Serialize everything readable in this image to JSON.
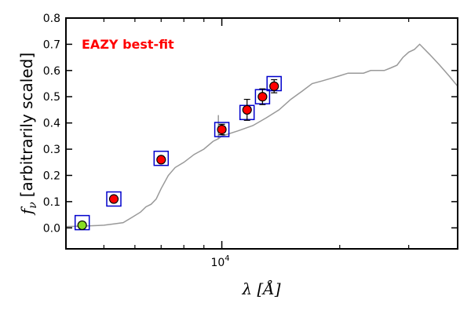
{
  "chart_data": {
    "type": "scatter",
    "title": "",
    "annotation": "EAZY best-fit",
    "annotation_color": "#ff0000",
    "ylabel_symbol": "f",
    "ylabel_subscript": "ν",
    "ylabel_text": "[arbitrarily scaled]",
    "xlabel": "λ [Å]",
    "x_scale": "log",
    "xlim": [
      4000,
      40000
    ],
    "ylim": [
      -0.08,
      0.8
    ],
    "y_ticks": [
      "0.0",
      "0.1",
      "0.2",
      "0.3",
      "0.4",
      "0.5",
      "0.6",
      "0.7",
      "0.8"
    ],
    "y_tick_values": [
      0.0,
      0.1,
      0.2,
      0.3,
      0.4,
      0.5,
      0.6,
      0.7,
      0.8
    ],
    "x_tick_label_base": "10",
    "x_tick_label_exp": "4",
    "x_tick_major": 10000,
    "x_tick_minor": [
      5000,
      6000,
      7000,
      8000,
      9000,
      20000,
      30000,
      40000
    ],
    "colors": {
      "model": "#999999",
      "observed": "#ff0000",
      "upper": "#88dd22",
      "box": "#0000cc",
      "axis": "#000000"
    },
    "model_sed": {
      "x": [
        4000,
        4500,
        5000,
        5300,
        5600,
        5900,
        6200,
        6400,
        6600,
        6800,
        7000,
        7300,
        7600,
        8000,
        8500,
        9000,
        9500,
        9800,
        10000,
        11000,
        12000,
        13000,
        14000,
        15000,
        16000,
        17000,
        18000,
        19000,
        20000,
        21000,
        22000,
        23000,
        24000,
        25000,
        26000,
        27000,
        28000,
        29000,
        30000,
        31000,
        32000,
        34000,
        36000,
        38000,
        40000
      ],
      "y": [
        0.005,
        0.007,
        0.01,
        0.015,
        0.02,
        0.04,
        0.06,
        0.08,
        0.09,
        0.11,
        0.15,
        0.2,
        0.23,
        0.25,
        0.28,
        0.3,
        0.33,
        0.34,
        0.35,
        0.37,
        0.39,
        0.42,
        0.45,
        0.49,
        0.52,
        0.55,
        0.56,
        0.57,
        0.58,
        0.59,
        0.59,
        0.59,
        0.6,
        0.6,
        0.6,
        0.61,
        0.62,
        0.65,
        0.67,
        0.68,
        0.7,
        0.66,
        0.62,
        0.58,
        0.54
      ]
    },
    "series": [
      {
        "name": "observed",
        "x": [
          5300,
          7000,
          10000,
          11600,
          12700,
          13600
        ],
        "y": [
          0.11,
          0.26,
          0.375,
          0.45,
          0.5,
          0.54
        ],
        "yerr": [
          0.012,
          0.012,
          0.02,
          0.04,
          0.03,
          0.025
        ],
        "model_y": [
          0.11,
          0.265,
          0.375,
          0.44,
          0.5,
          0.55
        ]
      },
      {
        "name": "u-band",
        "x": [
          4400
        ],
        "y": [
          0.01
        ],
        "yerr": [
          0.012
        ],
        "model_y": [
          0.02
        ]
      }
    ]
  }
}
